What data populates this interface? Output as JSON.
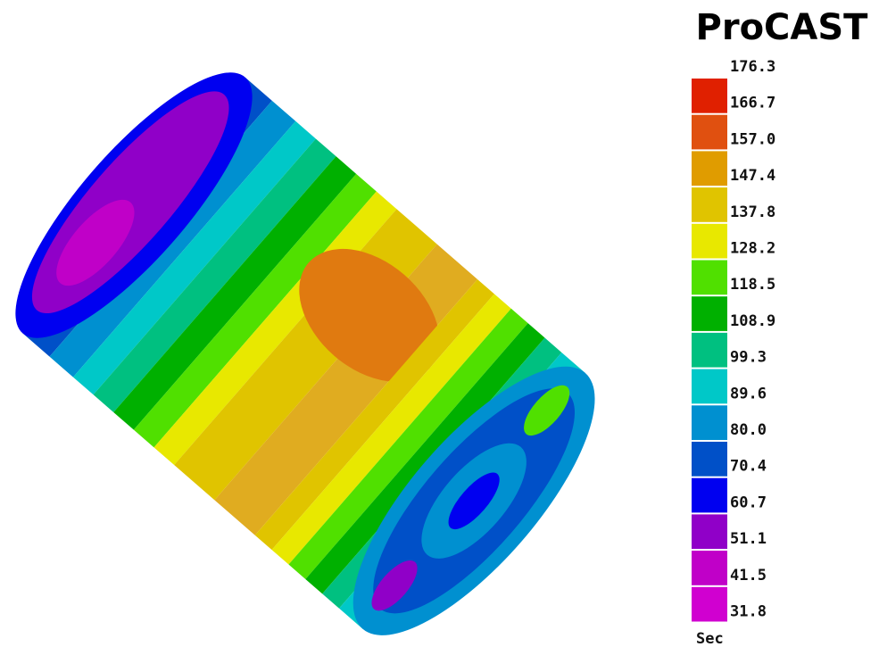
{
  "header": {
    "title": "ProCAST"
  },
  "legend": {
    "labels": [
      "176.3",
      "166.7",
      "157.0",
      "147.4",
      "137.8",
      "128.2",
      "118.5",
      "108.9",
      "99.3",
      "89.6",
      "80.0",
      "70.4",
      "60.7",
      "51.1",
      "41.5",
      "31.8"
    ],
    "colors": [
      "#e02000",
      "#e05010",
      "#e09c00",
      "#e0c400",
      "#e8e800",
      "#50e000",
      "#00b000",
      "#00c080",
      "#00c8c8",
      "#0090d0",
      "#0050c8",
      "#0000f0",
      "#9000c8",
      "#c000c8",
      "#d000d0"
    ],
    "unit": "Sec"
  }
}
